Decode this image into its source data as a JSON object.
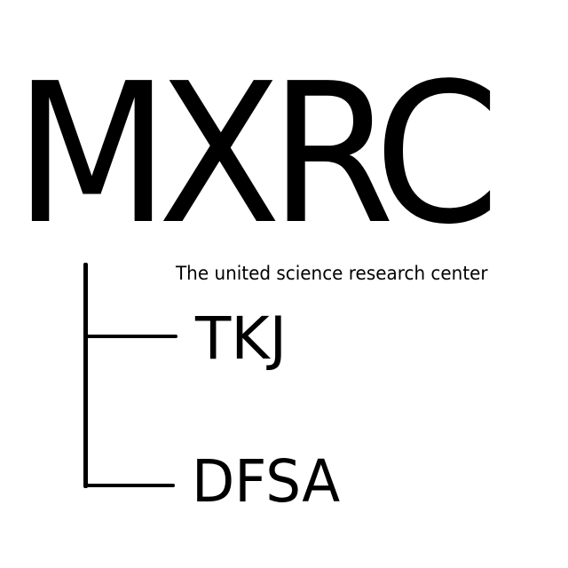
{
  "logo": {
    "title": "MXRC",
    "subtitle": "The united science research center",
    "branches": [
      {
        "label": "TKJ"
      },
      {
        "label": "DFSA"
      }
    ]
  },
  "colors": {
    "background": "#ffffff",
    "text": "#000000",
    "lines": "#000000"
  }
}
